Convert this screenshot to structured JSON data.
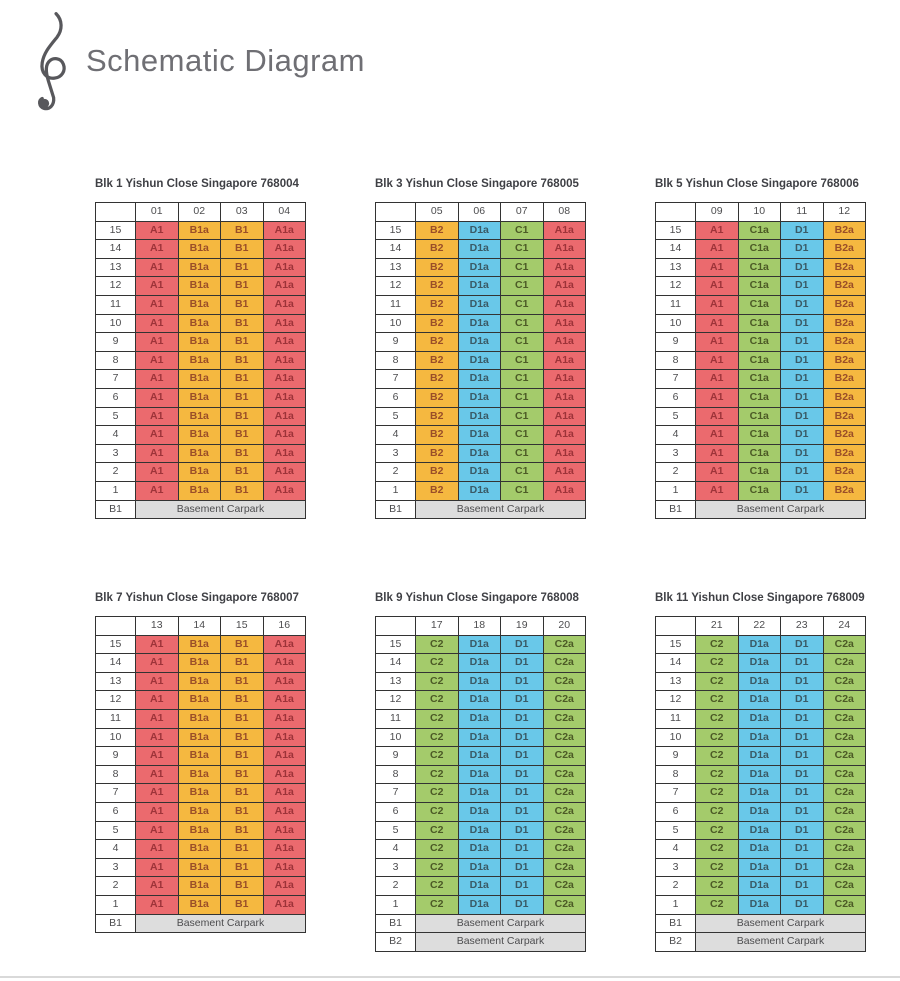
{
  "page": {
    "title": "Schematic Diagram"
  },
  "palette": {
    "border": "#333333",
    "red_bg": "#EB6A6E",
    "red_fg": "#9D3339",
    "orange_bg": "#F5B840",
    "orange_fg": "#9A4E28",
    "blue_bg": "#69C8E9",
    "blue_fg": "#3A5A66",
    "green_bg": "#A4CB6B",
    "green_fg": "#4C5A26",
    "basement_bg": "#DDDDDD"
  },
  "unit_colors": {
    "A1": "red",
    "A1a": "red",
    "B1": "orange",
    "B1a": "orange",
    "B2": "orange",
    "B2a": "orange",
    "C1": "green",
    "C1a": "green",
    "C2": "green",
    "C2a": "green",
    "D1": "blue",
    "D1a": "blue"
  },
  "floors": [
    "15",
    "14",
    "13",
    "12",
    "11",
    "10",
    "9",
    "8",
    "7",
    "6",
    "5",
    "4",
    "3",
    "2",
    "1"
  ],
  "basement_label": "Basement Carpark",
  "blocks": [
    {
      "title": "Blk 1 Yishun Close Singapore 768004",
      "stacks": [
        "01",
        "02",
        "03",
        "04"
      ],
      "units": [
        "A1",
        "B1a",
        "B1",
        "A1a"
      ],
      "basement_levels": [
        "B1"
      ]
    },
    {
      "title": "Blk 3 Yishun Close Singapore 768005",
      "stacks": [
        "05",
        "06",
        "07",
        "08"
      ],
      "units": [
        "B2",
        "D1a",
        "C1",
        "A1a"
      ],
      "basement_levels": [
        "B1"
      ]
    },
    {
      "title": "Blk 5 Yishun Close Singapore 768006",
      "stacks": [
        "09",
        "10",
        "11",
        "12"
      ],
      "units": [
        "A1",
        "C1a",
        "D1",
        "B2a"
      ],
      "basement_levels": [
        "B1"
      ]
    },
    {
      "title": "Blk 7 Yishun Close Singapore 768007",
      "stacks": [
        "13",
        "14",
        "15",
        "16"
      ],
      "units": [
        "A1",
        "B1a",
        "B1",
        "A1a"
      ],
      "basement_levels": [
        "B1"
      ]
    },
    {
      "title": "Blk 9 Yishun Close Singapore 768008",
      "stacks": [
        "17",
        "18",
        "19",
        "20"
      ],
      "units": [
        "C2",
        "D1a",
        "D1",
        "C2a"
      ],
      "basement_levels": [
        "B1",
        "B2"
      ]
    },
    {
      "title": "Blk 11 Yishun Close Singapore 768009",
      "stacks": [
        "21",
        "22",
        "23",
        "24"
      ],
      "units": [
        "C2",
        "D1a",
        "D1",
        "C2a"
      ],
      "basement_levels": [
        "B1",
        "B2"
      ]
    }
  ]
}
